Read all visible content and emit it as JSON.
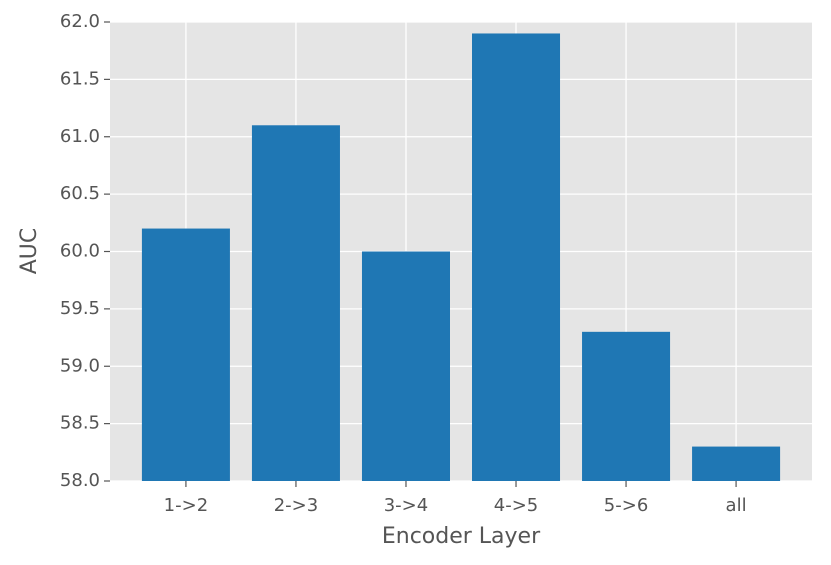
{
  "chart_data": {
    "type": "bar",
    "xlabel": "Encoder Layer",
    "ylabel": "AUC",
    "categories": [
      "1->2",
      "2->3",
      "3->4",
      "4->5",
      "5->6",
      "all"
    ],
    "values": [
      60.2,
      61.1,
      60.0,
      61.9,
      59.3,
      58.3
    ],
    "color": "#1f77b4",
    "ylim": [
      58,
      62
    ],
    "yticks": [
      {
        "value": 58,
        "label": "58.0"
      },
      58.5,
      {
        "value": 59,
        "label": "59.0"
      },
      59.5,
      {
        "value": 60,
        "label": "60.0"
      },
      60.5,
      {
        "value": 61,
        "label": "61.0"
      },
      61.5,
      {
        "value": 62,
        "label": "62.0"
      }
    ],
    "grid": true
  }
}
